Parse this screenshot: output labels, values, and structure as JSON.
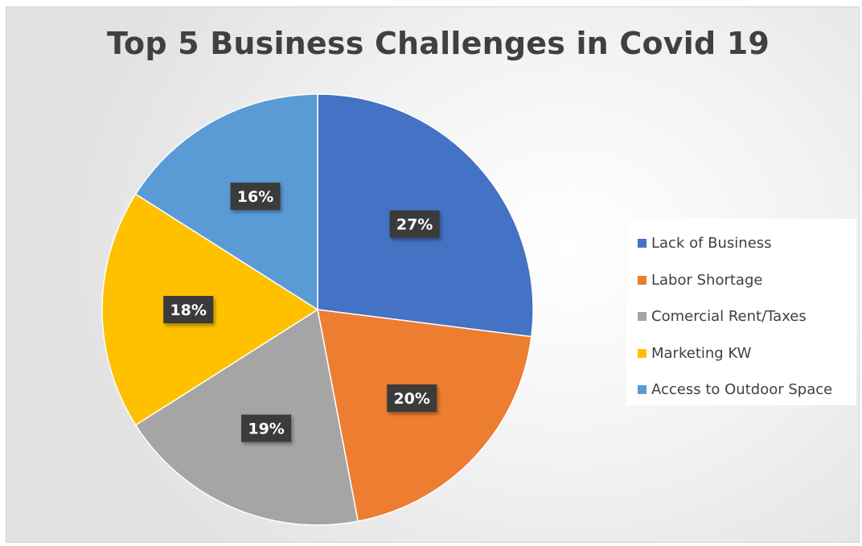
{
  "chart_data": {
    "type": "pie",
    "title": "Top 5 Business Challenges in Covid 19",
    "categories": [
      "Lack of Business",
      "Labor Shortage",
      "Comercial Rent/Taxes",
      "Marketing KW",
      "Access to Outdoor Space"
    ],
    "values": [
      27,
      20,
      19,
      18,
      16
    ],
    "value_labels": [
      "27%",
      "20%",
      "19%",
      "18%",
      "16%"
    ],
    "colors": [
      "#4472c4",
      "#ed7d31",
      "#a5a5a5",
      "#ffc000",
      "#5b9bd5"
    ],
    "legend_position": "right",
    "start_angle": "12 o'clock",
    "direction": "clockwise"
  }
}
